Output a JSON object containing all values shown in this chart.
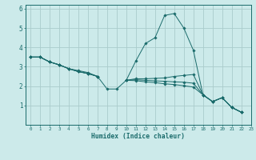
{
  "xlabel": "Humidex (Indice chaleur)",
  "background_color": "#cceaea",
  "grid_color": "#aacccc",
  "line_color": "#1a6b6b",
  "xlim": [
    -0.5,
    23
  ],
  "ylim": [
    0,
    6.2
  ],
  "yticks": [
    1,
    2,
    3,
    4,
    5,
    6
  ],
  "ytick_labels": [
    "1",
    "2",
    "3",
    "4",
    "5",
    "6"
  ],
  "xticks": [
    0,
    1,
    2,
    3,
    4,
    5,
    6,
    7,
    8,
    9,
    10,
    11,
    12,
    13,
    14,
    15,
    16,
    17,
    18,
    19,
    20,
    21,
    22,
    23
  ],
  "series": [
    [
      3.5,
      3.5,
      3.25,
      3.1,
      2.9,
      2.8,
      2.7,
      2.5,
      1.85,
      1.85,
      2.3,
      3.3,
      4.2,
      4.5,
      5.65,
      5.75,
      5.0,
      3.85,
      1.55,
      1.2,
      1.4,
      0.9,
      0.65,
      null
    ],
    [
      3.5,
      3.5,
      3.25,
      3.1,
      2.9,
      2.75,
      2.65,
      2.5,
      null,
      null,
      2.3,
      2.38,
      2.38,
      2.4,
      2.42,
      2.5,
      2.55,
      2.6,
      1.55,
      1.2,
      1.4,
      0.9,
      0.65,
      null
    ],
    [
      3.5,
      3.5,
      3.25,
      3.1,
      2.9,
      2.75,
      2.65,
      2.5,
      null,
      null,
      2.3,
      2.33,
      2.3,
      2.27,
      2.25,
      2.22,
      2.2,
      2.15,
      1.55,
      1.2,
      1.4,
      0.9,
      0.65,
      null
    ],
    [
      3.5,
      3.5,
      3.25,
      3.1,
      2.9,
      2.75,
      2.65,
      2.5,
      null,
      null,
      2.3,
      2.28,
      2.22,
      2.18,
      2.12,
      2.08,
      2.02,
      1.95,
      1.55,
      1.2,
      1.4,
      0.9,
      0.65,
      null
    ]
  ]
}
